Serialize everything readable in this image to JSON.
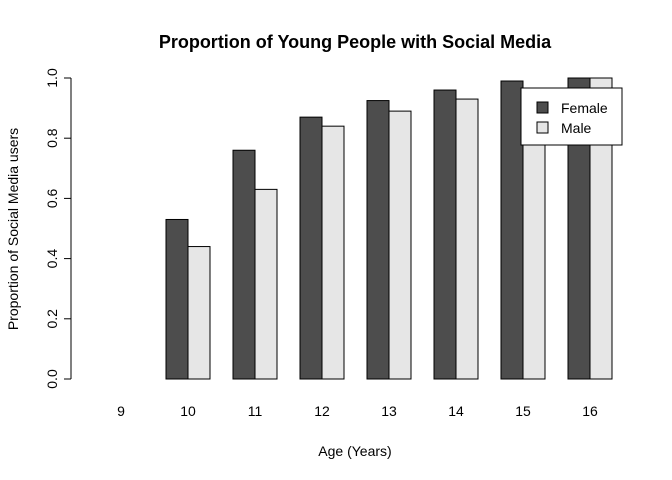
{
  "chart_data": {
    "type": "bar",
    "title": "Proportion of Young People with Social Media",
    "xlabel": "Age (Years)",
    "ylabel": "Proportion of Social Media users",
    "categories": [
      "9",
      "10",
      "11",
      "12",
      "13",
      "14",
      "15",
      "16"
    ],
    "series": [
      {
        "name": "Female",
        "color": "#4d4d4d",
        "values": [
          0.0,
          0.53,
          0.76,
          0.87,
          0.925,
          0.96,
          0.99,
          1.0
        ]
      },
      {
        "name": "Male",
        "color": "#e6e6e6",
        "values": [
          0.0,
          0.44,
          0.63,
          0.84,
          0.89,
          0.93,
          0.96,
          1.0
        ]
      }
    ],
    "ylim": [
      0,
      1
    ],
    "yticks": [
      "0.0",
      "0.2",
      "0.4",
      "0.6",
      "0.8",
      "1.0"
    ],
    "grid": false,
    "legend_position": "top-right"
  }
}
